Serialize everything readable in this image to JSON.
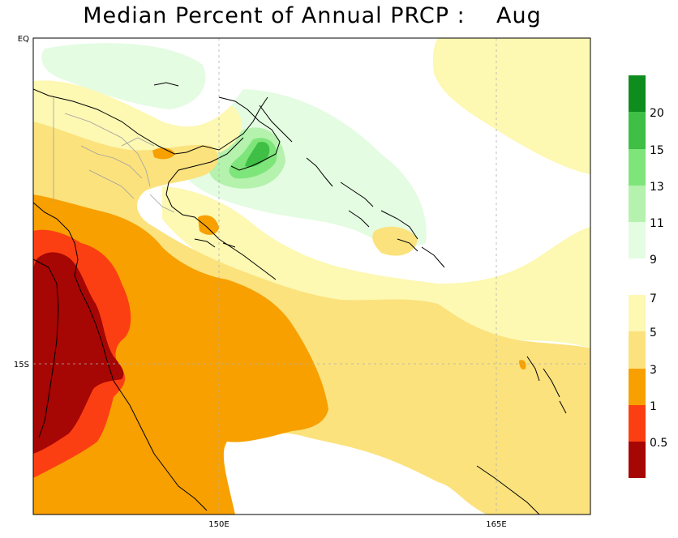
{
  "title": "Median Percent of Annual PRCP :    Aug",
  "axes": {
    "x_ticks": [
      "150E",
      "165E"
    ],
    "y_ticks": [
      "EQ",
      "15S"
    ]
  },
  "colorbar": {
    "labels": [
      "20",
      "15",
      "13",
      "11",
      "9",
      "7",
      "5",
      "3",
      "1",
      "0.5"
    ],
    "colors": {
      "c20plus": "#0f8c1e",
      "c15_20": "#3fbf45",
      "c13_15": "#7ee57a",
      "c11_13": "#b4f2ad",
      "c9_11": "#e4fce2",
      "c5_7": "#fdf8b2",
      "c3_5": "#fbe27d",
      "c1_3": "#f7a000",
      "c05_1": "#fc3f12",
      "c0_05": "#a60604"
    }
  },
  "colors": {
    "background": "#ffffff",
    "coast": "#000000",
    "borders": "#a0a0a0",
    "grid": "#b0b0b0"
  }
}
